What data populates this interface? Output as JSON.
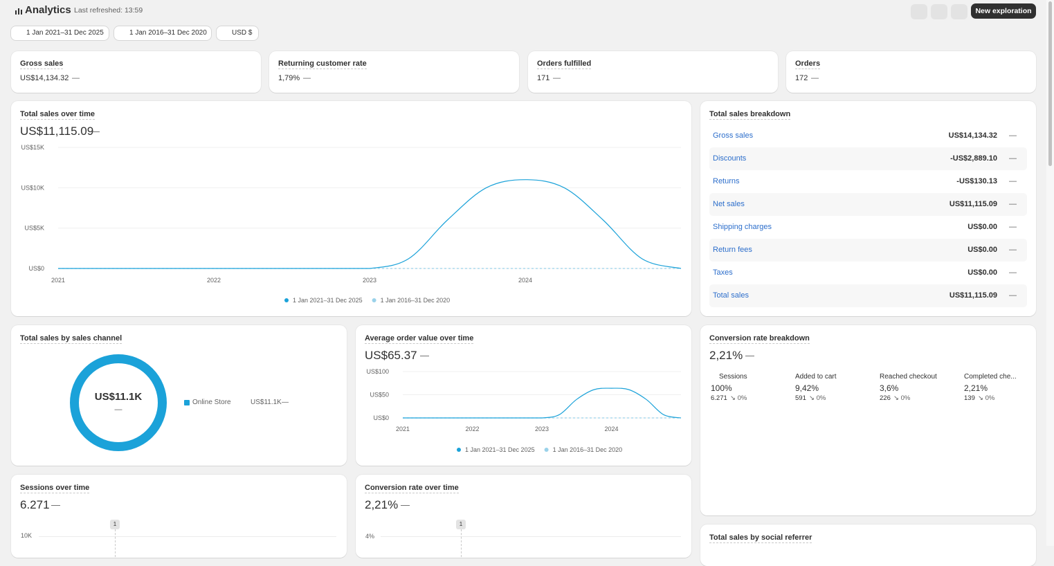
{
  "header": {
    "title": "Analytics",
    "refreshed": "Last refreshed: 13:59",
    "button": "New exploration"
  },
  "filters": [
    "1 Jan 2021–31 Dec 2025",
    "1 Jan 2016–31 Dec 2020",
    "USD $"
  ],
  "kpis": [
    {
      "label": "Gross sales",
      "value": "US$14,134.32",
      "change": "—"
    },
    {
      "label": "Returning customer rate",
      "value": "1,79%",
      "change": "—"
    },
    {
      "label": "Orders fulfilled",
      "value": "171",
      "change": "—"
    },
    {
      "label": "Orders",
      "value": "172",
      "change": "—"
    }
  ],
  "chart_data": [
    {
      "type": "line",
      "title": "Total sales over time",
      "value": "US$11,115.09",
      "change": "—",
      "x": [
        2021,
        2021.25,
        2021.5,
        2021.75,
        2022,
        2022.25,
        2022.5,
        2022.75,
        2023,
        2023.25,
        2023.5,
        2023.75,
        2024,
        2024.25,
        2024.5,
        2024.75,
        2025
      ],
      "xlim": [
        2021,
        2025
      ],
      "xticks": [
        2021,
        2022,
        2023,
        2024
      ],
      "ylim": [
        0,
        15000
      ],
      "yticks": [
        {
          "value": 0,
          "label": "US$0"
        },
        {
          "value": 5000,
          "label": "US$5K"
        },
        {
          "value": 10000,
          "label": "US$10K"
        },
        {
          "value": 15000,
          "label": "US$15K"
        }
      ],
      "grid": true,
      "series": [
        {
          "name": "1 Jan 2021–31 Dec 2025",
          "color": "#1ba2d9",
          "values": [
            0,
            0,
            0,
            0,
            0,
            0,
            0,
            0,
            0,
            1200,
            6000,
            10000,
            11000,
            10000,
            6000,
            1200,
            0
          ]
        },
        {
          "name": "1 Jan 2016–31 Dec 2020",
          "color": "#9ad2ea",
          "values": [
            0,
            0,
            0,
            0,
            0,
            0,
            0,
            0,
            0,
            0,
            0,
            0,
            0,
            0,
            0,
            0,
            0
          ]
        }
      ]
    },
    {
      "type": "line",
      "title": "Average order value over time",
      "value": "US$65.37",
      "change": "—",
      "x": [
        2021,
        2021.25,
        2021.5,
        2021.75,
        2022,
        2022.25,
        2022.5,
        2022.75,
        2023,
        2023.25,
        2023.5,
        2023.75,
        2024,
        2024.25,
        2024.5,
        2024.75,
        2025
      ],
      "xlim": [
        2021,
        2025
      ],
      "xticks": [
        2021,
        2022,
        2023,
        2024
      ],
      "ylim": [
        0,
        100
      ],
      "yticks": [
        {
          "value": 0,
          "label": "US$0"
        },
        {
          "value": 50,
          "label": "US$50"
        },
        {
          "value": 100,
          "label": "US$100"
        }
      ],
      "grid": true,
      "series": [
        {
          "name": "1 Jan 2021–31 Dec 2025",
          "color": "#1ba2d9",
          "values": [
            0,
            0,
            0,
            0,
            0,
            0,
            0,
            0,
            0,
            7,
            40,
            61,
            64,
            61,
            40,
            7,
            0
          ]
        },
        {
          "name": "1 Jan 2016–31 Dec 2020",
          "color": "#9ad2ea",
          "values": [
            0,
            0,
            0,
            0,
            0,
            0,
            0,
            0,
            0,
            0,
            0,
            0,
            0,
            0,
            0,
            0,
            0
          ]
        }
      ]
    }
  ],
  "breakdown": {
    "title": "Total sales breakdown",
    "rows": [
      {
        "name": "Gross sales",
        "value": "US$14,134.32",
        "change": "—"
      },
      {
        "name": "Discounts",
        "value": "-US$2,889.10",
        "change": "—"
      },
      {
        "name": "Returns",
        "value": "-US$130.13",
        "change": "—"
      },
      {
        "name": "Net sales",
        "value": "US$11,115.09",
        "change": "—"
      },
      {
        "name": "Shipping charges",
        "value": "US$0.00",
        "change": "—"
      },
      {
        "name": "Return fees",
        "value": "US$0.00",
        "change": "—"
      },
      {
        "name": "Taxes",
        "value": "US$0.00",
        "change": "—"
      },
      {
        "name": "Total sales",
        "value": "US$11,115.09",
        "change": "—"
      }
    ]
  },
  "sales_channel": {
    "title": "Total sales by sales channel",
    "center": "US$11.1K",
    "center_change": "—",
    "items": [
      {
        "name": "Online Store",
        "value": "US$11.1K",
        "change": "—"
      }
    ]
  },
  "conversion": {
    "title": "Conversion rate breakdown",
    "value": "2,21%",
    "change": "—",
    "steps": [
      {
        "name": "Sessions",
        "rate": 100,
        "rate_label": "100%",
        "count": "6.271",
        "change": "↘ 0%"
      },
      {
        "name": "Added to cart",
        "rate": 9.42,
        "rate_label": "9,42%",
        "count": "591",
        "change": "↘ 0%"
      },
      {
        "name": "Reached checkout",
        "rate": 3.6,
        "rate_label": "3,6%",
        "count": "226",
        "change": "↘ 0%"
      },
      {
        "name": "Completed che...",
        "rate": 2.21,
        "rate_label": "2,21%",
        "count": "139",
        "change": "↘ 0%"
      }
    ]
  },
  "sessions": {
    "title": "Sessions over time",
    "value": "6.271",
    "change": "—",
    "top_tick": "10K",
    "marker": "1"
  },
  "conversion_time": {
    "title": "Conversion rate over time",
    "value": "2,21%",
    "change": "—",
    "top_tick": "4%",
    "marker": "1"
  },
  "social": {
    "title": "Total sales by social referrer"
  }
}
